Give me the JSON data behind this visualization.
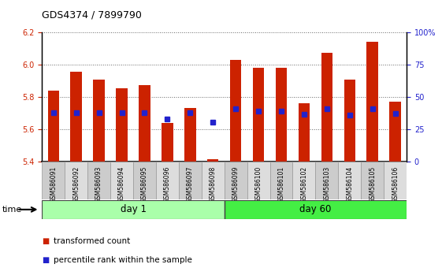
{
  "title": "GDS4374 / 7899790",
  "samples": [
    "GSM586091",
    "GSM586092",
    "GSM586093",
    "GSM586094",
    "GSM586095",
    "GSM586096",
    "GSM586097",
    "GSM586098",
    "GSM586099",
    "GSM586100",
    "GSM586101",
    "GSM586102",
    "GSM586103",
    "GSM586104",
    "GSM586105",
    "GSM586106"
  ],
  "groups": [
    {
      "label": "day 1",
      "start": 0,
      "end": 8,
      "color": "#AAFFAA"
    },
    {
      "label": "day 60",
      "start": 8,
      "end": 16,
      "color": "#44EE44"
    }
  ],
  "bar_base": 5.4,
  "red_tops": [
    5.84,
    5.955,
    5.905,
    5.855,
    5.875,
    5.64,
    5.73,
    5.415,
    6.03,
    5.98,
    5.98,
    5.76,
    6.07,
    5.905,
    6.14,
    5.77
  ],
  "blue_y": [
    5.705,
    5.705,
    5.705,
    5.705,
    5.705,
    5.665,
    5.705,
    5.645,
    5.725,
    5.715,
    5.715,
    5.695,
    5.725,
    5.69,
    5.725,
    5.7
  ],
  "ylim_left": [
    5.4,
    6.2
  ],
  "ylim_right": [
    0,
    100
  ],
  "y_ticks_left": [
    5.4,
    5.6,
    5.8,
    6.0,
    6.2
  ],
  "y_ticks_right": [
    0,
    25,
    50,
    75,
    100
  ],
  "y_ticks_right_labels": [
    "0",
    "25",
    "50",
    "75",
    "100%"
  ],
  "bar_color": "#CC2200",
  "blue_color": "#2222CC",
  "grid_color": "#666666",
  "bg_plot": "#FFFFFF",
  "tick_box_color": "#CCCCCC",
  "tick_label_fontsize": 7.0,
  "bar_width": 0.5,
  "legend_items": [
    {
      "color": "#CC2200",
      "label": "transformed count"
    },
    {
      "color": "#2222CC",
      "label": "percentile rank within the sample"
    }
  ]
}
